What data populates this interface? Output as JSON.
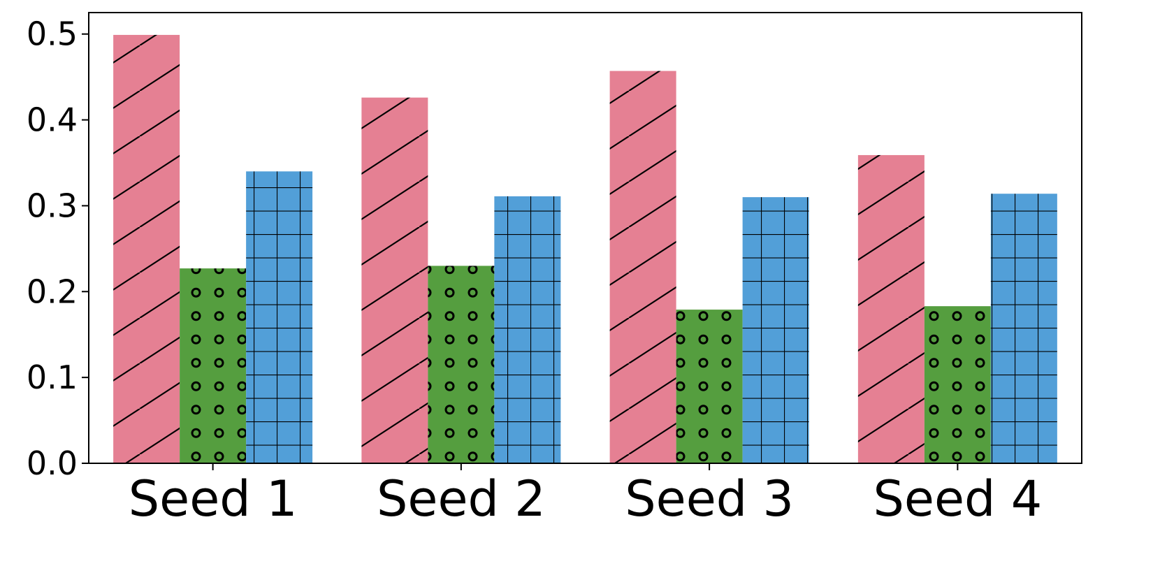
{
  "chart_data": {
    "type": "bar",
    "categories": [
      "Seed 1",
      "Seed 2",
      "Seed 3",
      "Seed 4"
    ],
    "series": [
      {
        "values": [
          0.499,
          0.426,
          0.457,
          0.359
        ],
        "color": "#E58093",
        "pattern": "diagonal-hatch"
      },
      {
        "values": [
          0.227,
          0.23,
          0.179,
          0.183
        ],
        "color": "#559E3F",
        "pattern": "circles"
      },
      {
        "values": [
          0.34,
          0.311,
          0.31,
          0.314
        ],
        "color": "#529FD8",
        "pattern": "grid"
      }
    ],
    "title": "",
    "xlabel": "",
    "ylabel": "",
    "ylim": [
      0,
      0.525
    ],
    "yticks": [
      "0.0",
      "0.1",
      "0.2",
      "0.3",
      "0.4",
      "0.5"
    ],
    "grid": false,
    "legend": "none"
  }
}
